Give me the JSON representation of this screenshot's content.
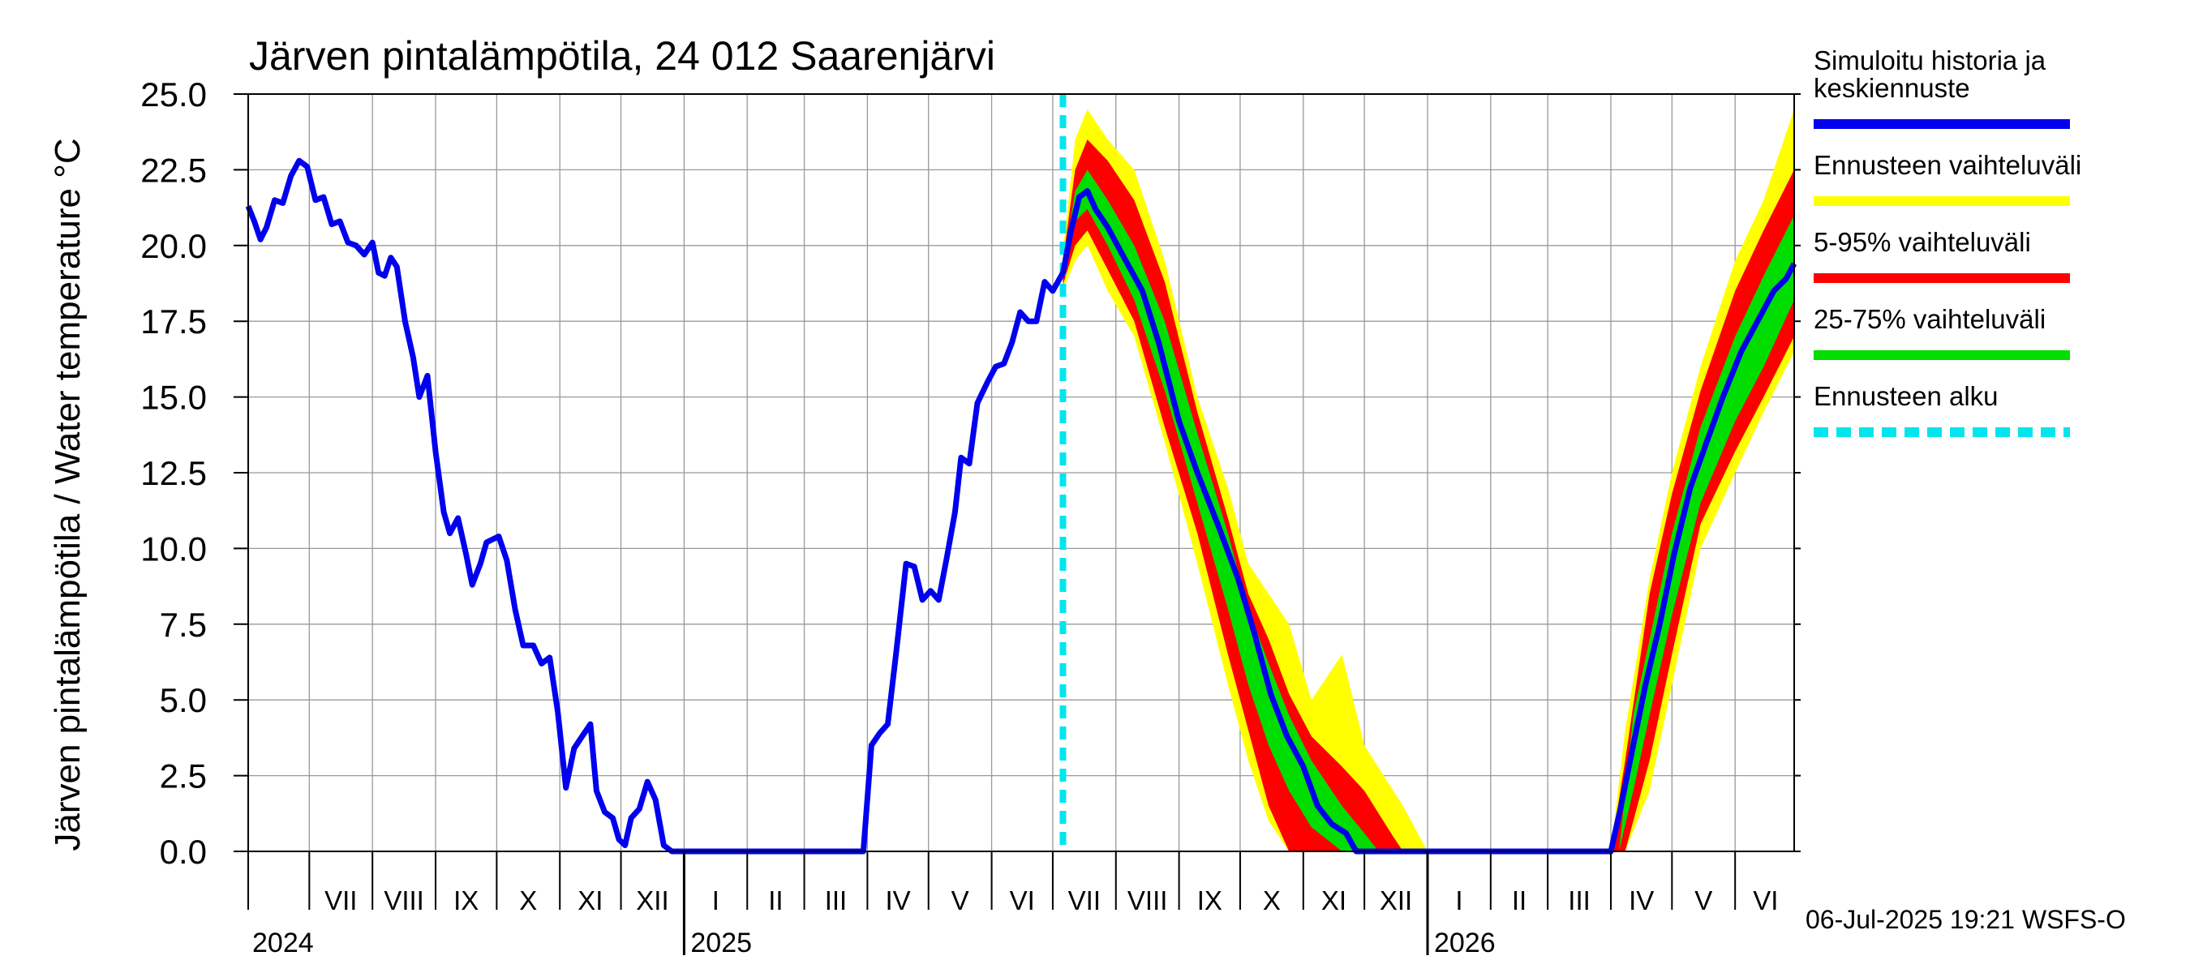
{
  "chart_data": {
    "type": "line",
    "title": "Järven pintalämpötila, 24 012 Saarenjärvi",
    "ylabel": "Järven pintalämpötila / Water temperature °C",
    "ylim": [
      0,
      25
    ],
    "yticks": [
      "0.0",
      "2.5",
      "5.0",
      "7.5",
      "10.0",
      "12.5",
      "15.0",
      "17.5",
      "20.0",
      "22.5",
      "25.0"
    ],
    "x_range": [
      "2024-06-01",
      "2026-06-30"
    ],
    "month_labels": [
      {
        "label": "VII",
        "start": "2024-07-01",
        "end": "2024-08-01"
      },
      {
        "label": "VIII",
        "start": "2024-08-01",
        "end": "2024-09-01"
      },
      {
        "label": "IX",
        "start": "2024-09-01",
        "end": "2024-10-01"
      },
      {
        "label": "X",
        "start": "2024-10-01",
        "end": "2024-11-01"
      },
      {
        "label": "XI",
        "start": "2024-11-01",
        "end": "2024-12-01"
      },
      {
        "label": "XII",
        "start": "2024-12-01",
        "end": "2025-01-01"
      },
      {
        "label": "I",
        "start": "2025-01-01",
        "end": "2025-02-01"
      },
      {
        "label": "II",
        "start": "2025-02-01",
        "end": "2025-03-01"
      },
      {
        "label": "III",
        "start": "2025-03-01",
        "end": "2025-04-01"
      },
      {
        "label": "IV",
        "start": "2025-04-01",
        "end": "2025-05-01"
      },
      {
        "label": "V",
        "start": "2025-05-01",
        "end": "2025-06-01"
      },
      {
        "label": "VI",
        "start": "2025-06-01",
        "end": "2025-07-01"
      },
      {
        "label": "VII",
        "start": "2025-07-01",
        "end": "2025-08-01"
      },
      {
        "label": "VIII",
        "start": "2025-08-01",
        "end": "2025-09-01"
      },
      {
        "label": "IX",
        "start": "2025-09-01",
        "end": "2025-10-01"
      },
      {
        "label": "X",
        "start": "2025-10-01",
        "end": "2025-11-01"
      },
      {
        "label": "XI",
        "start": "2025-11-01",
        "end": "2025-12-01"
      },
      {
        "label": "XII",
        "start": "2025-12-01",
        "end": "2026-01-01"
      },
      {
        "label": "I",
        "start": "2026-01-01",
        "end": "2026-02-01"
      },
      {
        "label": "II",
        "start": "2026-02-01",
        "end": "2026-03-01"
      },
      {
        "label": "III",
        "start": "2026-03-01",
        "end": "2026-04-01"
      },
      {
        "label": "IV",
        "start": "2026-04-01",
        "end": "2026-05-01"
      },
      {
        "label": "V",
        "start": "2026-05-01",
        "end": "2026-06-01"
      },
      {
        "label": "VI",
        "start": "2026-06-01",
        "end": "2026-07-01"
      }
    ],
    "year_labels": [
      {
        "label": "2024",
        "date": "2024-07-01"
      },
      {
        "label": "2025",
        "date": "2025-01-01"
      },
      {
        "label": "2026",
        "date": "2026-01-01"
      }
    ],
    "forecast_start": "2025-07-06",
    "series": [
      {
        "name": "Simuloitu historia ja keskiennuste",
        "color": "#0000ee",
        "points": [
          [
            "2024-06-01",
            21.3
          ],
          [
            "2024-06-04",
            20.8
          ],
          [
            "2024-06-07",
            20.2
          ],
          [
            "2024-06-10",
            20.6
          ],
          [
            "2024-06-14",
            21.5
          ],
          [
            "2024-06-18",
            21.4
          ],
          [
            "2024-06-22",
            22.3
          ],
          [
            "2024-06-26",
            22.8
          ],
          [
            "2024-06-30",
            22.6
          ],
          [
            "2024-07-04",
            21.5
          ],
          [
            "2024-07-08",
            21.6
          ],
          [
            "2024-07-12",
            20.7
          ],
          [
            "2024-07-16",
            20.8
          ],
          [
            "2024-07-20",
            20.1
          ],
          [
            "2024-07-24",
            20.0
          ],
          [
            "2024-07-28",
            19.7
          ],
          [
            "2024-08-01",
            20.1
          ],
          [
            "2024-08-04",
            19.1
          ],
          [
            "2024-08-07",
            19.0
          ],
          [
            "2024-08-10",
            19.6
          ],
          [
            "2024-08-13",
            19.3
          ],
          [
            "2024-08-17",
            17.5
          ],
          [
            "2024-08-21",
            16.3
          ],
          [
            "2024-08-24",
            15.0
          ],
          [
            "2024-08-28",
            15.7
          ],
          [
            "2024-09-01",
            13.2
          ],
          [
            "2024-09-05",
            11.2
          ],
          [
            "2024-09-08",
            10.5
          ],
          [
            "2024-09-12",
            11.0
          ],
          [
            "2024-09-16",
            9.8
          ],
          [
            "2024-09-19",
            8.8
          ],
          [
            "2024-09-23",
            9.5
          ],
          [
            "2024-09-26",
            10.2
          ],
          [
            "2024-10-02",
            10.4
          ],
          [
            "2024-10-06",
            9.6
          ],
          [
            "2024-10-10",
            8.0
          ],
          [
            "2024-10-14",
            6.8
          ],
          [
            "2024-10-19",
            6.8
          ],
          [
            "2024-10-23",
            6.2
          ],
          [
            "2024-10-27",
            6.4
          ],
          [
            "2024-10-31",
            4.6
          ],
          [
            "2024-11-04",
            2.1
          ],
          [
            "2024-11-08",
            3.4
          ],
          [
            "2024-11-12",
            3.8
          ],
          [
            "2024-11-16",
            4.2
          ],
          [
            "2024-11-19",
            2.0
          ],
          [
            "2024-11-23",
            1.3
          ],
          [
            "2024-11-27",
            1.1
          ],
          [
            "2024-11-30",
            0.4
          ],
          [
            "2024-12-03",
            0.2
          ],
          [
            "2024-12-06",
            1.1
          ],
          [
            "2024-12-10",
            1.4
          ],
          [
            "2024-12-14",
            2.3
          ],
          [
            "2024-12-18",
            1.7
          ],
          [
            "2024-12-22",
            0.2
          ],
          [
            "2024-12-26",
            0.0
          ],
          [
            "2025-03-30",
            0.0
          ],
          [
            "2025-04-03",
            3.5
          ],
          [
            "2025-04-07",
            3.9
          ],
          [
            "2025-04-11",
            4.2
          ],
          [
            "2025-04-15",
            6.5
          ],
          [
            "2025-04-20",
            9.5
          ],
          [
            "2025-04-24",
            9.4
          ],
          [
            "2025-04-28",
            8.3
          ],
          [
            "2025-05-02",
            8.6
          ],
          [
            "2025-05-06",
            8.3
          ],
          [
            "2025-05-10",
            9.7
          ],
          [
            "2025-05-14",
            11.2
          ],
          [
            "2025-05-17",
            13.0
          ],
          [
            "2025-05-21",
            12.8
          ],
          [
            "2025-05-25",
            14.8
          ],
          [
            "2025-05-30",
            15.5
          ],
          [
            "2025-06-03",
            16.0
          ],
          [
            "2025-06-07",
            16.1
          ],
          [
            "2025-06-11",
            16.8
          ],
          [
            "2025-06-15",
            17.8
          ],
          [
            "2025-06-19",
            17.5
          ],
          [
            "2025-06-23",
            17.5
          ],
          [
            "2025-06-27",
            18.8
          ],
          [
            "2025-07-01",
            18.5
          ],
          [
            "2025-07-06",
            19.1
          ],
          [
            "2025-07-10",
            20.5
          ],
          [
            "2025-07-14",
            21.6
          ],
          [
            "2025-07-18",
            21.8
          ],
          [
            "2025-07-22",
            21.2
          ],
          [
            "2025-07-28",
            20.6
          ],
          [
            "2025-08-05",
            19.6
          ],
          [
            "2025-08-14",
            18.5
          ],
          [
            "2025-08-22",
            16.8
          ],
          [
            "2025-09-01",
            14.2
          ],
          [
            "2025-09-10",
            12.5
          ],
          [
            "2025-09-20",
            10.8
          ],
          [
            "2025-09-30",
            9.0
          ],
          [
            "2025-10-08",
            7.2
          ],
          [
            "2025-10-16",
            5.2
          ],
          [
            "2025-10-24",
            3.8
          ],
          [
            "2025-11-01",
            2.8
          ],
          [
            "2025-11-08",
            1.5
          ],
          [
            "2025-11-15",
            0.9
          ],
          [
            "2025-11-22",
            0.6
          ],
          [
            "2025-11-27",
            0.0
          ],
          [
            "2026-04-01",
            0.0
          ],
          [
            "2026-04-06",
            1.5
          ],
          [
            "2026-04-12",
            3.5
          ],
          [
            "2026-04-18",
            5.5
          ],
          [
            "2026-04-25",
            7.5
          ],
          [
            "2026-05-02",
            9.8
          ],
          [
            "2026-05-10",
            12.0
          ],
          [
            "2026-05-18",
            13.5
          ],
          [
            "2026-05-26",
            15.0
          ],
          [
            "2026-06-04",
            16.5
          ],
          [
            "2026-06-12",
            17.5
          ],
          [
            "2026-06-20",
            18.5
          ],
          [
            "2026-06-26",
            18.9
          ],
          [
            "2026-06-30",
            19.4
          ]
        ]
      },
      {
        "name": "Ennusteen vaihteluväli",
        "color": "#ffff00",
        "band": [
          [
            "2025-07-06",
            18.5,
            19.8
          ],
          [
            "2025-07-12",
            19.5,
            23.5
          ],
          [
            "2025-07-18",
            20.0,
            24.5
          ],
          [
            "2025-07-28",
            18.5,
            23.5
          ],
          [
            "2025-08-10",
            17.0,
            22.5
          ],
          [
            "2025-08-25",
            13.5,
            19.5
          ],
          [
            "2025-09-10",
            9.5,
            15.0
          ],
          [
            "2025-09-25",
            5.5,
            12.0
          ],
          [
            "2025-10-05",
            3.0,
            9.5
          ],
          [
            "2025-10-15",
            1.0,
            8.5
          ],
          [
            "2025-10-25",
            0.0,
            7.5
          ],
          [
            "2025-11-05",
            0.0,
            5.0
          ],
          [
            "2025-11-20",
            0.0,
            6.5
          ],
          [
            "2025-12-01",
            0.0,
            3.5
          ],
          [
            "2025-12-20",
            0.0,
            1.5
          ],
          [
            "2026-01-01",
            0.0,
            0.0
          ],
          [
            "2026-04-01",
            0.0,
            0.0
          ],
          [
            "2026-04-08",
            0.0,
            4.0
          ],
          [
            "2026-04-20",
            2.0,
            9.0
          ],
          [
            "2026-05-01",
            5.5,
            12.5
          ],
          [
            "2026-05-15",
            10.0,
            16.0
          ],
          [
            "2026-06-01",
            12.5,
            19.5
          ],
          [
            "2026-06-15",
            14.5,
            21.5
          ],
          [
            "2026-06-30",
            16.5,
            24.5
          ]
        ]
      },
      {
        "name": "5-95% vaihteluväli",
        "color": "#ff0000",
        "band": [
          [
            "2025-07-06",
            18.7,
            19.5
          ],
          [
            "2025-07-12",
            20.0,
            22.5
          ],
          [
            "2025-07-18",
            20.5,
            23.5
          ],
          [
            "2025-07-28",
            19.2,
            22.8
          ],
          [
            "2025-08-10",
            17.5,
            21.5
          ],
          [
            "2025-08-25",
            14.0,
            18.8
          ],
          [
            "2025-09-10",
            10.5,
            14.5
          ],
          [
            "2025-09-25",
            6.5,
            11.0
          ],
          [
            "2025-10-05",
            4.0,
            8.5
          ],
          [
            "2025-10-15",
            1.5,
            7.0
          ],
          [
            "2025-10-25",
            0.0,
            5.2
          ],
          [
            "2025-11-05",
            0.0,
            3.8
          ],
          [
            "2025-11-20",
            0.0,
            2.8
          ],
          [
            "2025-12-01",
            0.0,
            2.0
          ],
          [
            "2025-12-15",
            0.0,
            0.5
          ],
          [
            "2025-12-20",
            0.0,
            0.0
          ],
          [
            "2026-04-01",
            0.0,
            0.0
          ],
          [
            "2026-04-08",
            0.0,
            3.0
          ],
          [
            "2026-04-20",
            3.0,
            8.5
          ],
          [
            "2026-05-01",
            6.5,
            11.8
          ],
          [
            "2026-05-15",
            10.8,
            15.2
          ],
          [
            "2026-06-01",
            13.2,
            18.5
          ],
          [
            "2026-06-15",
            15.0,
            20.5
          ],
          [
            "2026-06-30",
            17.0,
            22.5
          ]
        ]
      },
      {
        "name": "25-75% vaihteluväli",
        "color": "#00dd00",
        "band": [
          [
            "2025-07-06",
            18.9,
            19.3
          ],
          [
            "2025-07-12",
            20.8,
            21.8
          ],
          [
            "2025-07-18",
            21.2,
            22.5
          ],
          [
            "2025-07-28",
            20.0,
            21.5
          ],
          [
            "2025-08-10",
            18.2,
            20.0
          ],
          [
            "2025-08-25",
            15.2,
            17.5
          ],
          [
            "2025-09-10",
            11.5,
            13.8
          ],
          [
            "2025-09-25",
            8.0,
            10.5
          ],
          [
            "2025-10-05",
            5.5,
            8.0
          ],
          [
            "2025-10-15",
            3.5,
            6.2
          ],
          [
            "2025-10-25",
            2.0,
            4.5
          ],
          [
            "2025-11-05",
            0.8,
            3.0
          ],
          [
            "2025-11-20",
            0.0,
            1.5
          ],
          [
            "2025-12-01",
            0.0,
            0.6
          ],
          [
            "2025-12-08",
            0.0,
            0.0
          ],
          [
            "2026-04-05",
            0.0,
            0.0
          ],
          [
            "2026-04-12",
            2.0,
            4.5
          ],
          [
            "2026-04-20",
            4.5,
            7.0
          ],
          [
            "2026-05-01",
            7.8,
            10.5
          ],
          [
            "2026-05-15",
            11.5,
            14.0
          ],
          [
            "2026-06-01",
            14.2,
            17.0
          ],
          [
            "2026-06-15",
            16.0,
            19.0
          ],
          [
            "2026-06-30",
            18.2,
            21.0
          ]
        ]
      }
    ],
    "legend": {
      "position": "right",
      "entries": [
        {
          "text_lines": [
            "Simuloitu historia ja",
            "keskiennuste"
          ],
          "color": "#0000ee",
          "style": "solid"
        },
        {
          "text_lines": [
            "Ennusteen vaihteluväli"
          ],
          "color": "#ffff00",
          "style": "solid"
        },
        {
          "text_lines": [
            "5-95% vaihteluväli"
          ],
          "color": "#ff0000",
          "style": "solid"
        },
        {
          "text_lines": [
            "25-75% vaihteluväli"
          ],
          "color": "#00dd00",
          "style": "solid"
        },
        {
          "text_lines": [
            "Ennusteen alku"
          ],
          "color": "#00e5ee",
          "style": "dashed"
        }
      ]
    },
    "grid": true,
    "footer": "06-Jul-2025 19:21 WSFS-O"
  }
}
